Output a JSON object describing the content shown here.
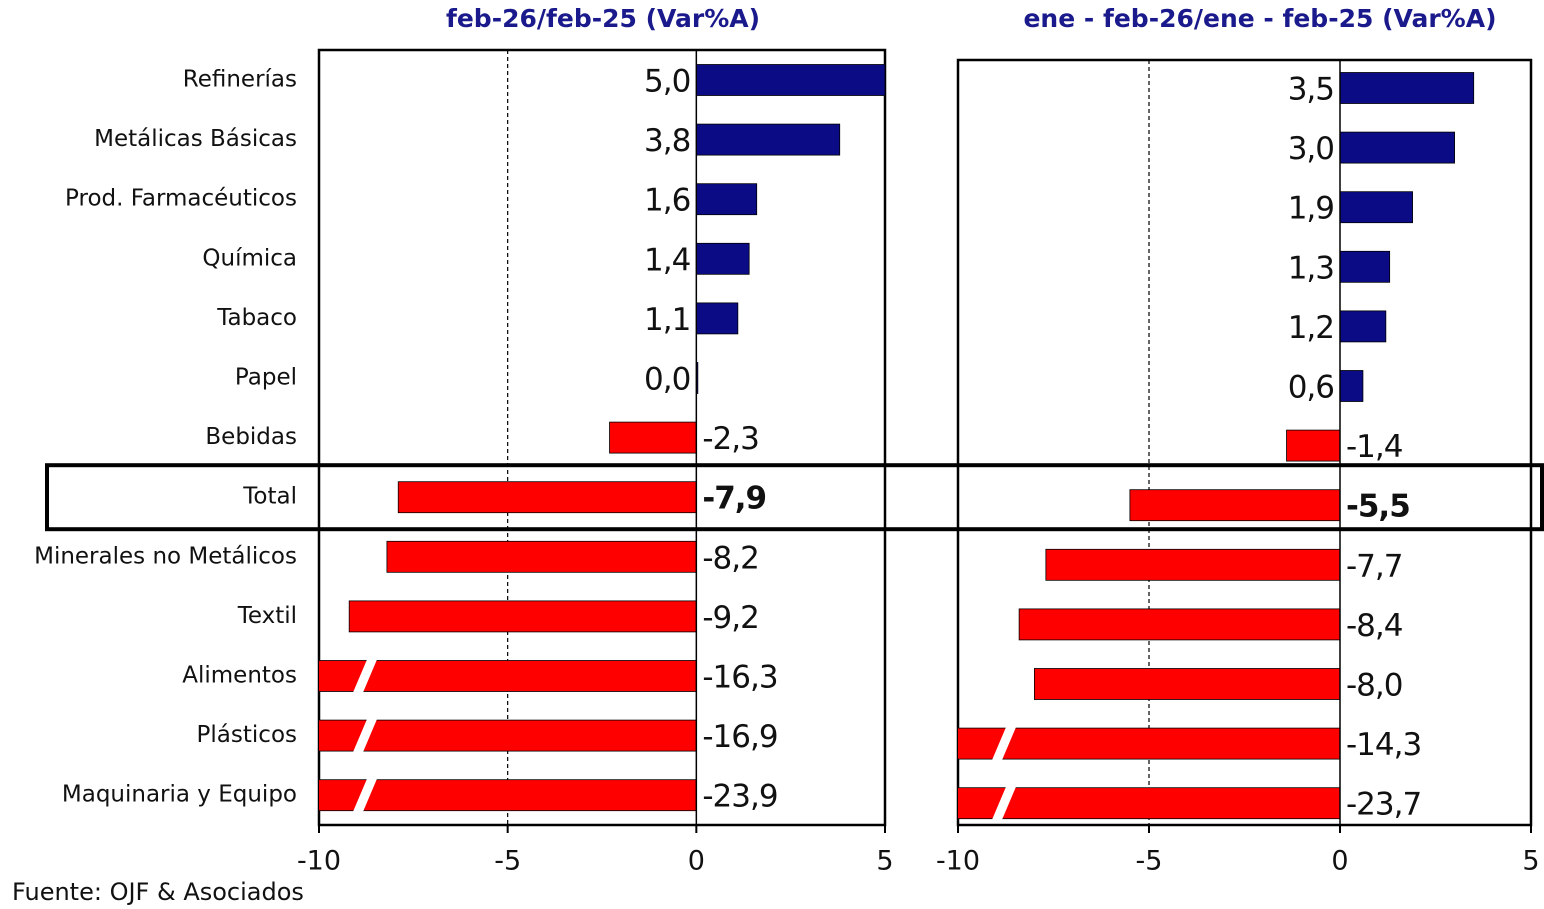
{
  "chart_data": [
    {
      "type": "bar",
      "orientation": "horizontal",
      "title": "feb-26/feb-25  (Var%A)",
      "categories": [
        "Refinerías",
        "Metálicas Básicas",
        "Prod. Farmacéuticos",
        "Química",
        "Tabaco",
        "Papel",
        "Bebidas",
        "Total",
        "Minerales no Metálicos",
        "Textil",
        "Alimentos",
        "Plásticos",
        "Maquinaria y Equipo"
      ],
      "values": [
        5.0,
        3.8,
        1.6,
        1.4,
        1.1,
        0.0,
        -2.3,
        -7.9,
        -8.2,
        -9.2,
        -16.3,
        -16.9,
        -23.9
      ],
      "value_labels": [
        "5,0",
        "3,8",
        "1,6",
        "1,4",
        "1,1",
        "0,0",
        "-2,3",
        "-7,9",
        "-8,2",
        "-9,2",
        "-16,3",
        "-16,9",
        "-23,9"
      ],
      "positive_color": "#0b0b85",
      "negative_color": "#ff0000",
      "xlim": [
        -10,
        5
      ],
      "xticks": [
        -10,
        -5,
        0,
        5
      ],
      "grid": true
    },
    {
      "type": "bar",
      "orientation": "horizontal",
      "title": "ene - feb-26/ene - feb-25  (Var%A)",
      "values": [
        3.5,
        3.0,
        1.9,
        1.3,
        1.2,
        0.6,
        -1.4,
        -5.5,
        -7.7,
        -8.4,
        -8.0,
        -14.3,
        -23.7
      ],
      "value_labels": [
        "3,5",
        "3,0",
        "1,9",
        "1,3",
        "1,2",
        "0,6",
        "-1,4",
        "-5,5",
        "-7,7",
        "-8,4",
        "-8,0",
        "-14,3",
        "-23,7"
      ],
      "positive_color": "#0b0b85",
      "negative_color": "#ff0000",
      "xlim": [
        -10,
        5
      ],
      "xticks": [
        -10,
        -5,
        0,
        5
      ],
      "grid": true
    }
  ],
  "source": "Fuente: OJF & Asociados",
  "highlight": "Total"
}
